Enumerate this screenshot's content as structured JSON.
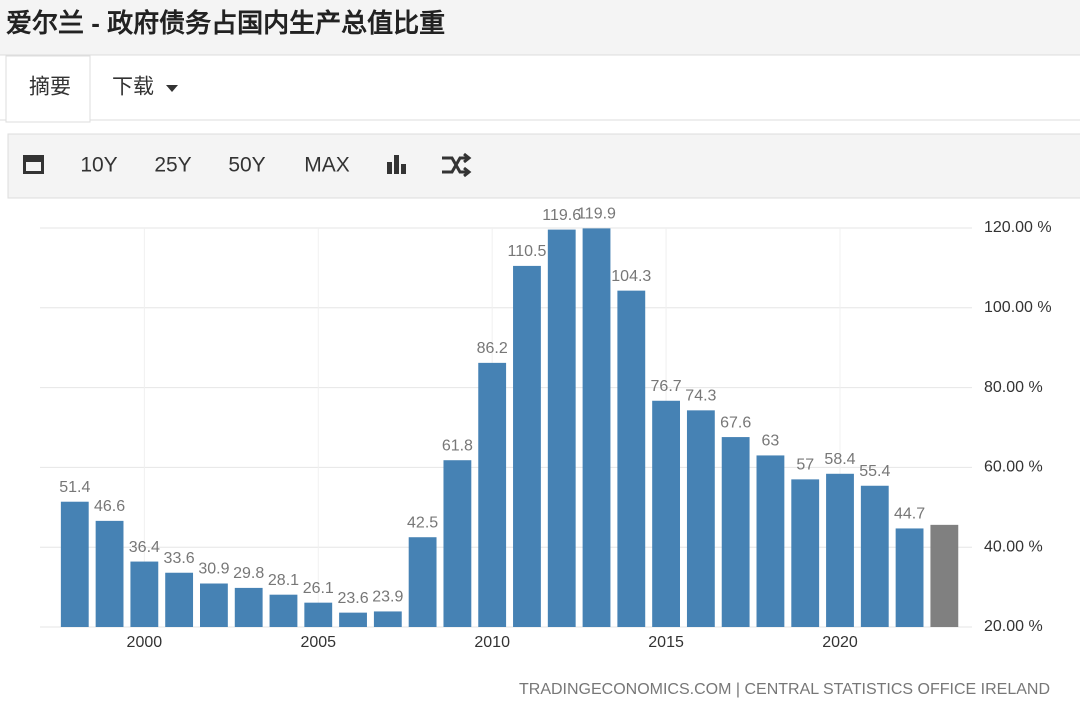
{
  "header": {
    "title": "爱尔兰 - 政府债务占国内生产总值比重"
  },
  "tabs": [
    "摘要",
    "下载"
  ],
  "toolbar": [
    "10Y",
    "25Y",
    "50Y",
    "MAX"
  ],
  "chart_data": {
    "type": "bar",
    "x": [
      1998,
      1999,
      2000,
      2001,
      2002,
      2003,
      2004,
      2005,
      2006,
      2007,
      2008,
      2009,
      2010,
      2011,
      2012,
      2013,
      2014,
      2015,
      2016,
      2017,
      2018,
      2019,
      2020,
      2021,
      2022,
      2023
    ],
    "values": [
      51.4,
      46.6,
      36.4,
      33.6,
      30.9,
      29.8,
      28.1,
      26.1,
      23.6,
      23.9,
      42.5,
      61.8,
      86.2,
      110.5,
      119.6,
      119.9,
      104.3,
      76.7,
      74.3,
      67.6,
      63,
      57,
      58.4,
      55.4,
      44.7,
      45.6
    ],
    "value_labels": [
      "51.4",
      "46.6",
      "36.4",
      "33.6",
      "30.9",
      "29.8",
      "28.1",
      "26.1",
      "23.6",
      "23.9",
      "42.5",
      "61.8",
      "86.2",
      "110.5",
      "119.6",
      "119.9",
      "104.3",
      "76.7",
      "74.3",
      "67.6",
      "63",
      "57",
      "58.4",
      "55.4",
      "44.7",
      null
    ],
    "colors": [
      "#4682b4",
      "#4682b4",
      "#4682b4",
      "#4682b4",
      "#4682b4",
      "#4682b4",
      "#4682b4",
      "#4682b4",
      "#4682b4",
      "#4682b4",
      "#4682b4",
      "#4682b4",
      "#4682b4",
      "#4682b4",
      "#4682b4",
      "#4682b4",
      "#4682b4",
      "#4682b4",
      "#4682b4",
      "#4682b4",
      "#4682b4",
      "#4682b4",
      "#4682b4",
      "#4682b4",
      "#4682b4",
      "#808080"
    ],
    "xlim": [
      1997,
      2023.45
    ],
    "xticks": [
      2000,
      2005,
      2010,
      2015,
      2020
    ],
    "ylim": [
      20,
      120
    ],
    "yticks": [
      {
        "value": 20,
        "label": "20.00 %"
      },
      {
        "value": 40,
        "label": "40.00 %"
      },
      {
        "value": 60,
        "label": "60.00 %"
      },
      {
        "value": 80,
        "label": "80.00 %"
      },
      {
        "value": 100,
        "label": "100.00 %"
      },
      {
        "value": 120,
        "label": "120.00 %"
      }
    ],
    "grid": true,
    "source": "TRADINGECONOMICS.COM | CENTRAL STATISTICS OFFICE IRELAND"
  }
}
